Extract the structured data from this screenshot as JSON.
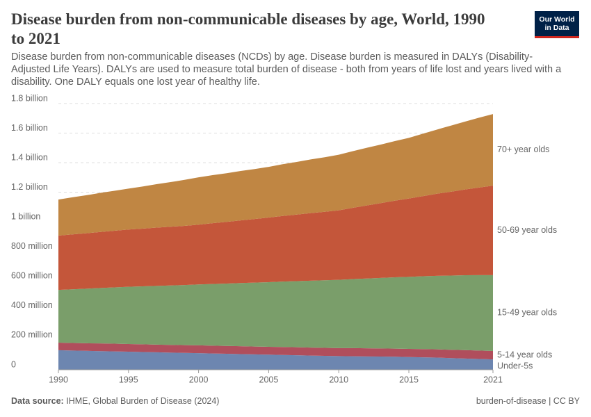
{
  "chart_data": {
    "type": "stacked-area",
    "title": "Disease burden from non-communicable diseases by age, World, 1990 to 2021",
    "subtitle": "Disease burden from non-communicable diseases (NCDs) by age. Disease burden is measured in DALYs (Disability-Adjusted Life Years). DALYs are used to measure total burden of disease - both from years of life lost and years lived with a disability. One DALY equals one lost year of healthy life.",
    "logo": "Our World in Data",
    "source_label": "Data source:",
    "source": "IHME, Global Burden of Disease (2024)",
    "license": "burden-of-disease | CC BY",
    "x": [
      1990,
      1991,
      1992,
      1993,
      1994,
      1995,
      1996,
      1997,
      1998,
      1999,
      2000,
      2001,
      2002,
      2003,
      2004,
      2005,
      2006,
      2007,
      2008,
      2009,
      2010,
      2011,
      2012,
      2013,
      2014,
      2015,
      2016,
      2017,
      2018,
      2019,
      2020,
      2021
    ],
    "xlim": [
      1990,
      2021
    ],
    "xticks": [
      1990,
      1995,
      2000,
      2005,
      2010,
      2015,
      2021
    ],
    "ylim": [
      0,
      1800000000
    ],
    "yticks": [
      0,
      {
        "value": 200000000,
        "label": "200 million"
      },
      {
        "value": 400000000,
        "label": "400 million"
      },
      {
        "value": 600000000,
        "label": "600 million"
      },
      {
        "value": 800000000,
        "label": "800 million"
      },
      {
        "value": 1000000000,
        "label": "1 billion"
      },
      {
        "value": 1200000000,
        "label": "1.2 billion"
      },
      {
        "value": 1400000000,
        "label": "1.4 billion"
      },
      {
        "value": 1600000000,
        "label": "1.6 billion"
      },
      {
        "value": 1800000000,
        "label": "1.8 billion"
      }
    ],
    "grid": true,
    "series": [
      {
        "name": "Under-5s",
        "color": "#6d86b0",
        "label_color": "#4c6a9c",
        "values": [
          132000000,
          130000000,
          128000000,
          126000000,
          124000000,
          122000000,
          120000000,
          118000000,
          116000000,
          114000000,
          112000000,
          110000000,
          108000000,
          106000000,
          104000000,
          102000000,
          100000000,
          98000000,
          96000000,
          94000000,
          92000000,
          91000000,
          90000000,
          89000000,
          88000000,
          86000000,
          84000000,
          82000000,
          79000000,
          76000000,
          73000000,
          70000000
        ]
      },
      {
        "name": "5-14 year olds",
        "color": "#b04e5c",
        "label_color": "#9a2f3e",
        "values": [
          51000000,
          51000000,
          51000000,
          52000000,
          52000000,
          52000000,
          52000000,
          52000000,
          52000000,
          52000000,
          53000000,
          53000000,
          53000000,
          53000000,
          53000000,
          53000000,
          54000000,
          54000000,
          54000000,
          54000000,
          54000000,
          55000000,
          55000000,
          55000000,
          55000000,
          55000000,
          56000000,
          56000000,
          56000000,
          57000000,
          57000000,
          57000000
        ]
      },
      {
        "name": "15-49 year olds",
        "color": "#7a9e6a",
        "label_color": "#578145",
        "values": [
          357000000,
          363000000,
          369000000,
          375000000,
          381000000,
          387000000,
          392000000,
          397000000,
          402000000,
          407000000,
          412000000,
          417000000,
          422000000,
          427000000,
          432000000,
          437000000,
          442000000,
          447000000,
          452000000,
          457000000,
          462000000,
          467000000,
          472000000,
          477000000,
          482000000,
          487000000,
          492000000,
          497000000,
          502000000,
          506000000,
          510000000,
          513000000
        ]
      },
      {
        "name": "50-69 year olds",
        "color": "#c4563a",
        "label_color": "#b13507",
        "values": [
          367000000,
          371000000,
          375000000,
          379000000,
          383000000,
          387000000,
          390000000,
          394000000,
          397000000,
          400000000,
          404000000,
          411000000,
          417000000,
          424000000,
          430000000,
          437000000,
          444000000,
          450000000,
          457000000,
          463000000,
          470000000,
          482000000,
          494000000,
          506000000,
          518000000,
          530000000,
          542000000,
          555000000,
          567000000,
          580000000,
          592000000,
          605000000
        ]
      },
      {
        "name": "70+ year olds",
        "color": "#c08643",
        "label_color": "#b16214",
        "values": [
          244000000,
          251000000,
          257000000,
          264000000,
          270000000,
          277000000,
          285000000,
          294000000,
          302000000,
          311000000,
          320000000,
          325000000,
          329000000,
          334000000,
          338000000,
          343000000,
          350000000,
          356000000,
          363000000,
          369000000,
          376000000,
          383000000,
          390000000,
          396000000,
          403000000,
          410000000,
          422000000,
          434000000,
          447000000,
          459000000,
          472000000,
          484000000
        ]
      }
    ]
  }
}
